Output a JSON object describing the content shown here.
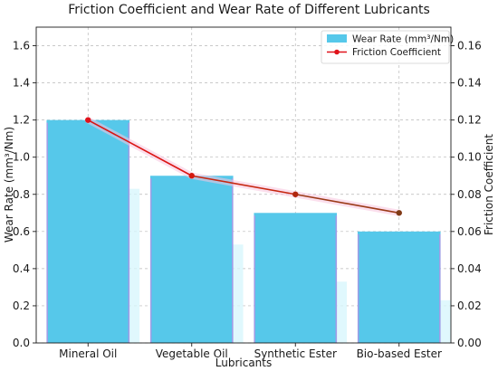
{
  "chart_data": {
    "type": "bar",
    "title": "Friction Coefficient and Wear Rate of Different Lubricants",
    "xlabel": "Lubricants",
    "ylabel": "Wear Rate (mm³/Nm)",
    "y2label": "Friction Coefficient",
    "categories": [
      "Mineral Oil",
      "Vegetable Oil",
      "Synthetic Ester",
      "Bio-based Ester"
    ],
    "ylim": [
      0,
      1.7
    ],
    "y2lim": [
      0,
      0.17
    ],
    "yticks": [
      "0.0",
      "0.2",
      "0.4",
      "0.6",
      "0.8",
      "1.0",
      "1.2",
      "1.4",
      "1.6"
    ],
    "y2ticks": [
      "0.00",
      "0.02",
      "0.04",
      "0.06",
      "0.08",
      "0.10",
      "0.12",
      "0.14",
      "0.16"
    ],
    "grid": true,
    "legend_position": "top-right",
    "series": [
      {
        "name": "Wear Rate (mm³/Nm)",
        "type": "bar",
        "axis": "left",
        "values": [
          1.2,
          0.9,
          0.7,
          0.6
        ],
        "color": "#56c8ea"
      },
      {
        "name": "Friction Coefficient",
        "type": "line",
        "axis": "right",
        "values": [
          0.12,
          0.09,
          0.08,
          0.07
        ],
        "color": "#e0131b"
      }
    ]
  }
}
